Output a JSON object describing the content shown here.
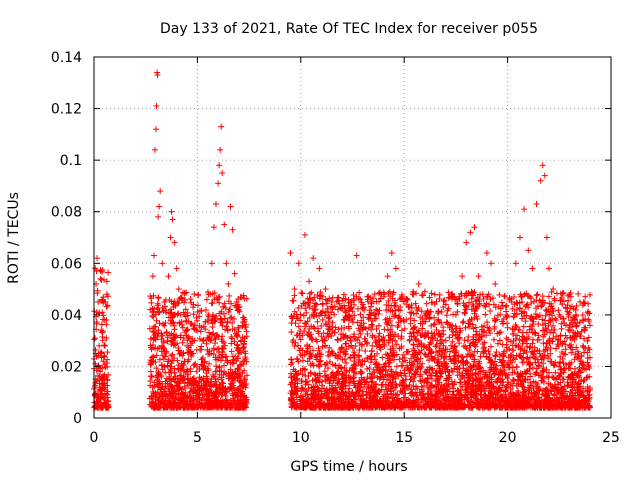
{
  "chart_data": {
    "type": "scatter",
    "title": "Day 133 of 2021, Rate Of TEC Index for receiver p055",
    "xlabel": "GPS time / hours",
    "ylabel": "ROTI / TECUs",
    "xlim": [
      0,
      25
    ],
    "ylim": [
      0,
      0.14
    ],
    "xticks": [
      "0",
      "5",
      "10",
      "15",
      "20",
      "25"
    ],
    "yticks": [
      "0",
      "0.02",
      "0.04",
      "0.06",
      "0.08",
      "0.1",
      "0.12",
      "0.14"
    ],
    "grid": true,
    "marker": "+",
    "color": "#ff0000",
    "series": [
      {
        "points": [
          [
            0.05,
            0.012
          ],
          [
            0.1,
            0.052
          ],
          [
            0.15,
            0.062
          ],
          [
            0.2,
            0.045
          ],
          [
            0.25,
            0.028
          ],
          [
            0.3,
            0.018
          ],
          [
            0.35,
            0.034
          ],
          [
            0.4,
            0.041
          ],
          [
            0.45,
            0.022
          ],
          [
            0.5,
            0.011
          ],
          [
            0.55,
            0.045
          ],
          [
            0.6,
            0.031
          ],
          [
            0.65,
            0.009
          ],
          [
            0.02,
            0.006
          ],
          [
            0.12,
            0.057
          ],
          [
            0.22,
            0.008
          ],
          [
            0.32,
            0.025
          ],
          [
            0.42,
            0.015
          ],
          [
            0.52,
            0.038
          ],
          [
            0.62,
            0.004
          ],
          [
            2.75,
            0.018
          ],
          [
            2.85,
            0.055
          ],
          [
            2.9,
            0.063
          ],
          [
            2.95,
            0.104
          ],
          [
            3.0,
            0.112
          ],
          [
            3.02,
            0.121
          ],
          [
            3.05,
            0.134
          ],
          [
            3.07,
            0.133
          ],
          [
            3.1,
            0.078
          ],
          [
            3.15,
            0.082
          ],
          [
            3.2,
            0.088
          ],
          [
            3.3,
            0.06
          ],
          [
            3.4,
            0.045
          ],
          [
            3.5,
            0.033
          ],
          [
            3.6,
            0.055
          ],
          [
            3.7,
            0.07
          ],
          [
            3.75,
            0.08
          ],
          [
            3.8,
            0.077
          ],
          [
            3.9,
            0.068
          ],
          [
            4.0,
            0.058
          ],
          [
            4.1,
            0.05
          ],
          [
            4.2,
            0.04
          ],
          [
            4.3,
            0.035
          ],
          [
            4.5,
            0.028
          ],
          [
            4.7,
            0.024
          ],
          [
            4.9,
            0.021
          ],
          [
            5.1,
            0.019
          ],
          [
            5.3,
            0.03
          ],
          [
            5.5,
            0.038
          ],
          [
            5.7,
            0.06
          ],
          [
            5.8,
            0.074
          ],
          [
            5.9,
            0.083
          ],
          [
            6.0,
            0.091
          ],
          [
            6.05,
            0.098
          ],
          [
            6.1,
            0.104
          ],
          [
            6.15,
            0.113
          ],
          [
            6.2,
            0.095
          ],
          [
            6.3,
            0.075
          ],
          [
            6.4,
            0.06
          ],
          [
            6.5,
            0.052
          ],
          [
            6.6,
            0.082
          ],
          [
            6.7,
            0.073
          ],
          [
            6.8,
            0.056
          ],
          [
            6.9,
            0.045
          ],
          [
            7.0,
            0.035
          ],
          [
            7.1,
            0.03
          ],
          [
            7.2,
            0.022
          ],
          [
            7.3,
            0.015
          ],
          [
            7.35,
            0.008
          ],
          [
            2.8,
            0.006
          ],
          [
            3.3,
            0.009
          ],
          [
            3.8,
            0.012
          ],
          [
            4.4,
            0.007
          ],
          [
            5.0,
            0.008
          ],
          [
            5.6,
            0.011
          ],
          [
            6.2,
            0.009
          ],
          [
            6.8,
            0.01
          ],
          [
            7.2,
            0.006
          ],
          [
            9.5,
            0.064
          ],
          [
            9.7,
            0.05
          ],
          [
            9.9,
            0.06
          ],
          [
            10.2,
            0.071
          ],
          [
            10.4,
            0.053
          ],
          [
            10.6,
            0.062
          ],
          [
            10.9,
            0.058
          ],
          [
            11.2,
            0.05
          ],
          [
            11.5,
            0.045
          ],
          [
            11.8,
            0.042
          ],
          [
            12.1,
            0.038
          ],
          [
            12.4,
            0.03
          ],
          [
            12.7,
            0.063
          ],
          [
            13.0,
            0.044
          ],
          [
            13.3,
            0.035
          ],
          [
            13.6,
            0.04
          ],
          [
            13.9,
            0.048
          ],
          [
            14.2,
            0.055
          ],
          [
            14.4,
            0.064
          ],
          [
            14.6,
            0.058
          ],
          [
            14.9,
            0.047
          ],
          [
            15.2,
            0.043
          ],
          [
            15.4,
            0.048
          ],
          [
            15.7,
            0.052
          ],
          [
            16.0,
            0.032
          ],
          [
            16.3,
            0.025
          ],
          [
            16.6,
            0.03
          ],
          [
            16.9,
            0.028
          ],
          [
            17.2,
            0.035
          ],
          [
            17.5,
            0.04
          ],
          [
            17.8,
            0.055
          ],
          [
            18.0,
            0.068
          ],
          [
            18.2,
            0.072
          ],
          [
            18.4,
            0.074
          ],
          [
            18.6,
            0.055
          ],
          [
            18.8,
            0.048
          ],
          [
            19.0,
            0.064
          ],
          [
            19.2,
            0.06
          ],
          [
            19.4,
            0.052
          ],
          [
            19.6,
            0.033
          ],
          [
            19.8,
            0.025
          ],
          [
            20.0,
            0.035
          ],
          [
            20.2,
            0.045
          ],
          [
            20.4,
            0.06
          ],
          [
            20.6,
            0.07
          ],
          [
            20.8,
            0.081
          ],
          [
            21.0,
            0.065
          ],
          [
            21.2,
            0.058
          ],
          [
            21.4,
            0.083
          ],
          [
            21.6,
            0.092
          ],
          [
            21.7,
            0.098
          ],
          [
            21.8,
            0.094
          ],
          [
            21.9,
            0.07
          ],
          [
            22.0,
            0.058
          ],
          [
            22.2,
            0.05
          ],
          [
            22.5,
            0.04
          ],
          [
            22.8,
            0.032
          ],
          [
            23.0,
            0.028
          ],
          [
            23.3,
            0.04
          ],
          [
            23.5,
            0.045
          ],
          [
            23.7,
            0.035
          ],
          [
            23.9,
            0.02
          ],
          [
            9.6,
            0.007
          ],
          [
            10.5,
            0.009
          ],
          [
            11.5,
            0.008
          ],
          [
            12.5,
            0.01
          ],
          [
            13.5,
            0.007
          ],
          [
            14.5,
            0.008
          ],
          [
            15.5,
            0.006
          ],
          [
            16.5,
            0.009
          ],
          [
            17.5,
            0.008
          ],
          [
            18.5,
            0.007
          ],
          [
            19.5,
            0.01
          ],
          [
            20.5,
            0.009
          ],
          [
            21.5,
            0.008
          ],
          [
            22.5,
            0.007
          ],
          [
            23.5,
            0.009
          ]
        ]
      }
    ]
  }
}
